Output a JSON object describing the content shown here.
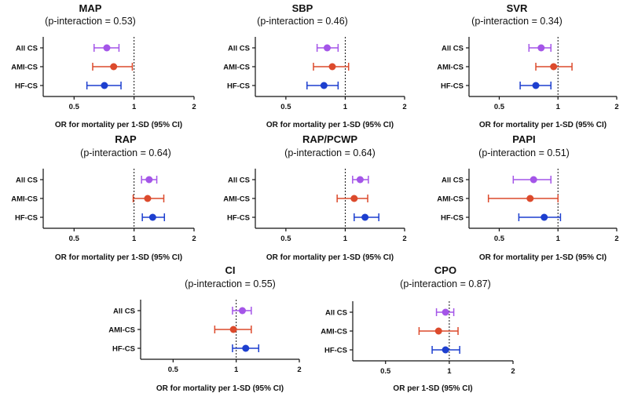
{
  "colors": {
    "All CS": "#a455e8",
    "AMI-CS": "#dc4a2c",
    "HF-CS": "#1d3fcf",
    "axis": "#111111"
  },
  "chart_data": [
    {
      "type": "forest",
      "title": "MAP",
      "subtitle": "(p-interaction = 0.53)",
      "xlabel": "OR for mortality per 1-SD (95% CI)",
      "xscale": "log",
      "xlim": [
        0.35,
        2
      ],
      "xticks": [
        "0.5",
        "1",
        "2"
      ],
      "reference": 1,
      "rows": [
        {
          "label": "All CS",
          "or": 0.73,
          "lo": 0.63,
          "hi": 0.84
        },
        {
          "label": "AMI-CS",
          "or": 0.79,
          "lo": 0.62,
          "hi": 0.98
        },
        {
          "label": "HF-CS",
          "or": 0.71,
          "lo": 0.58,
          "hi": 0.86
        }
      ]
    },
    {
      "type": "forest",
      "title": "SBP",
      "subtitle": "(p-interaction = 0.46)",
      "xlabel": "OR for mortality per 1-SD (95% CI)",
      "xscale": "log",
      "xlim": [
        0.35,
        2
      ],
      "xticks": [
        "0.5",
        "1",
        "2"
      ],
      "reference": 1,
      "rows": [
        {
          "label": "All CS",
          "or": 0.81,
          "lo": 0.72,
          "hi": 0.92
        },
        {
          "label": "AMI-CS",
          "or": 0.86,
          "lo": 0.69,
          "hi": 1.04
        },
        {
          "label": "HF-CS",
          "or": 0.78,
          "lo": 0.64,
          "hi": 0.92
        }
      ]
    },
    {
      "type": "forest",
      "title": "SVR",
      "subtitle": "(p-interaction = 0.34)",
      "xlabel": "OR for mortality per 1-SD (95% CI)",
      "xscale": "log",
      "xlim": [
        0.35,
        2
      ],
      "xticks": [
        "0.5",
        "1",
        "2"
      ],
      "reference": 1,
      "rows": [
        {
          "label": "All CS",
          "or": 0.82,
          "lo": 0.71,
          "hi": 0.92
        },
        {
          "label": "AMI-CS",
          "or": 0.95,
          "lo": 0.77,
          "hi": 1.18
        },
        {
          "label": "HF-CS",
          "or": 0.77,
          "lo": 0.64,
          "hi": 0.92
        }
      ]
    },
    {
      "type": "forest",
      "title": "RAP",
      "subtitle": "(p-interaction = 0.64)",
      "xlabel": "OR for mortality per 1-SD (95% CI)",
      "xscale": "log",
      "xlim": [
        0.35,
        2
      ],
      "xticks": [
        "0.5",
        "1",
        "2"
      ],
      "reference": 1,
      "rows": [
        {
          "label": "All CS",
          "or": 1.19,
          "lo": 1.09,
          "hi": 1.3
        },
        {
          "label": "AMI-CS",
          "or": 1.17,
          "lo": 0.99,
          "hi": 1.41
        },
        {
          "label": "HF-CS",
          "or": 1.24,
          "lo": 1.1,
          "hi": 1.42
        }
      ]
    },
    {
      "type": "forest",
      "title": "RAP/PCWP",
      "subtitle": "(p-interaction = 0.64)",
      "xlabel": "OR for mortality per 1-SD (95% CI)",
      "xscale": "log",
      "xlim": [
        0.35,
        2
      ],
      "xticks": [
        "0.5",
        "1",
        "2"
      ],
      "reference": 1,
      "rows": [
        {
          "label": "All CS",
          "or": 1.19,
          "lo": 1.09,
          "hi": 1.31
        },
        {
          "label": "AMI-CS",
          "or": 1.11,
          "lo": 0.91,
          "hi": 1.3
        },
        {
          "label": "HF-CS",
          "or": 1.26,
          "lo": 1.11,
          "hi": 1.48
        }
      ]
    },
    {
      "type": "forest",
      "title": "PAPI",
      "subtitle": "(p-interaction = 0.51)",
      "xlabel": "OR for mortality per 1-SD (95% CI)",
      "xscale": "log",
      "xlim": [
        0.35,
        2
      ],
      "xticks": [
        "0.5",
        "1",
        "2"
      ],
      "reference": 1,
      "rows": [
        {
          "label": "All CS",
          "or": 0.75,
          "lo": 0.59,
          "hi": 0.92
        },
        {
          "label": "AMI-CS",
          "or": 0.72,
          "lo": 0.44,
          "hi": 1.0
        },
        {
          "label": "HF-CS",
          "or": 0.85,
          "lo": 0.63,
          "hi": 1.03
        }
      ]
    },
    {
      "type": "forest",
      "title": "CI",
      "subtitle": "(p-interaction = 0.55)",
      "xlabel": "OR for mortality per 1-SD (95% CI)",
      "xscale": "log",
      "xlim": [
        0.35,
        2
      ],
      "xticks": [
        "0.5",
        "1",
        "2"
      ],
      "reference": 1,
      "rows": [
        {
          "label": "All CS",
          "or": 1.07,
          "lo": 0.96,
          "hi": 1.18
        },
        {
          "label": "AMI-CS",
          "or": 0.97,
          "lo": 0.79,
          "hi": 1.18
        },
        {
          "label": "HF-CS",
          "or": 1.11,
          "lo": 0.96,
          "hi": 1.28
        }
      ]
    },
    {
      "type": "forest",
      "title": "CPO",
      "subtitle": "(p-interaction = 0.87)",
      "xlabel": "OR per 1-SD (95% CI)",
      "xscale": "log",
      "xlim": [
        0.35,
        2
      ],
      "xticks": [
        "0.5",
        "1",
        "2"
      ],
      "reference": 1,
      "rows": [
        {
          "label": "All CS",
          "or": 0.96,
          "lo": 0.87,
          "hi": 1.05
        },
        {
          "label": "AMI-CS",
          "or": 0.89,
          "lo": 0.72,
          "hi": 1.1
        },
        {
          "label": "HF-CS",
          "or": 0.96,
          "lo": 0.83,
          "hi": 1.12
        }
      ]
    }
  ]
}
